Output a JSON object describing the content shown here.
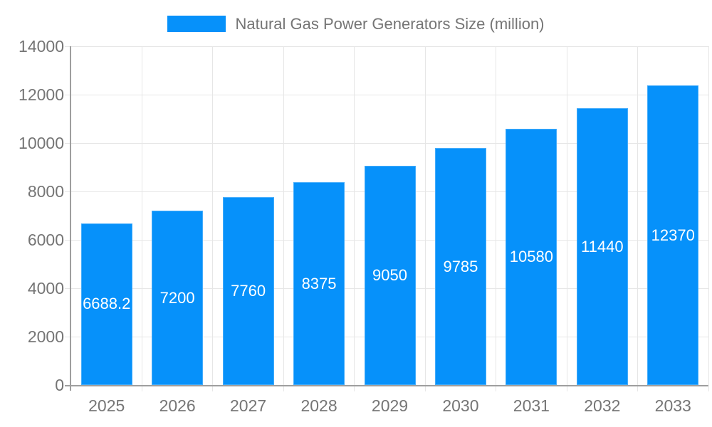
{
  "chart": {
    "legend_label": "Natural Gas Power Generators Size (million)",
    "colors": {
      "bar": "#0691fa",
      "bar_label": "#ffffff",
      "label": "#757575",
      "axis": "#9e9e9e",
      "grid": "#e6e6e6",
      "background": "#ffffff"
    }
  },
  "chart_data": {
    "type": "bar",
    "title": "Natural Gas Power Generators Size (million)",
    "categories": [
      "2025",
      "2026",
      "2027",
      "2028",
      "2029",
      "2030",
      "2031",
      "2032",
      "2033"
    ],
    "values": [
      6688.2,
      7200,
      7760,
      8375,
      9050,
      9785,
      10580,
      11440,
      12370
    ],
    "bar_labels": [
      "6688.2",
      "7200",
      "7760",
      "8375",
      "9050",
      "9785",
      "10580",
      "11440",
      "12370"
    ],
    "xlabel": "",
    "ylabel": "",
    "ylim": [
      0,
      14000
    ],
    "yticks": [
      0,
      2000,
      4000,
      6000,
      8000,
      10000,
      12000,
      14000
    ],
    "ytick_labels": [
      "0",
      "2000",
      "4000",
      "6000",
      "8000",
      "10000",
      "12000",
      "14000"
    ],
    "grid": true,
    "legend_position": "top"
  }
}
